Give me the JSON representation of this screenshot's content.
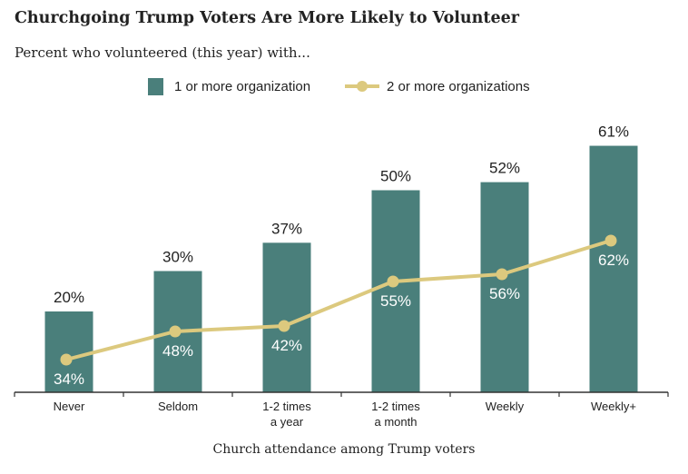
{
  "colors": {
    "bar": "#4a7f7b",
    "line": "#dcc97e",
    "text": "#222222",
    "axis": "#333333"
  },
  "chart_data": {
    "type": "bar",
    "title": "Churchgoing Trump Voters Are More Likely to Volunteer",
    "subtitle": "Percent who volunteered (this year) with...",
    "xlabel": "Church attendance among Trump voters",
    "ylabel": "",
    "ylim": [
      0,
      70
    ],
    "grid": false,
    "legend_position": "top",
    "categories": [
      [
        "Never"
      ],
      [
        "Seldom"
      ],
      [
        "1-2 times",
        "a year"
      ],
      [
        "1-2 times",
        "a month"
      ],
      [
        "Weekly"
      ],
      [
        "Weekly+"
      ]
    ],
    "series": [
      {
        "name": "1 or more organization",
        "type": "bar",
        "values": [
          20,
          30,
          37,
          50,
          52,
          61
        ],
        "labels": [
          "20%",
          "30%",
          "37%",
          "50%",
          "52%",
          "61%"
        ]
      },
      {
        "name": "2 or more organizations",
        "type": "line",
        "values": [
          34,
          48,
          42,
          55,
          56,
          62
        ],
        "labels": [
          "34%",
          "48%",
          "42%",
          "55%",
          "56%",
          "62%"
        ]
      }
    ]
  }
}
